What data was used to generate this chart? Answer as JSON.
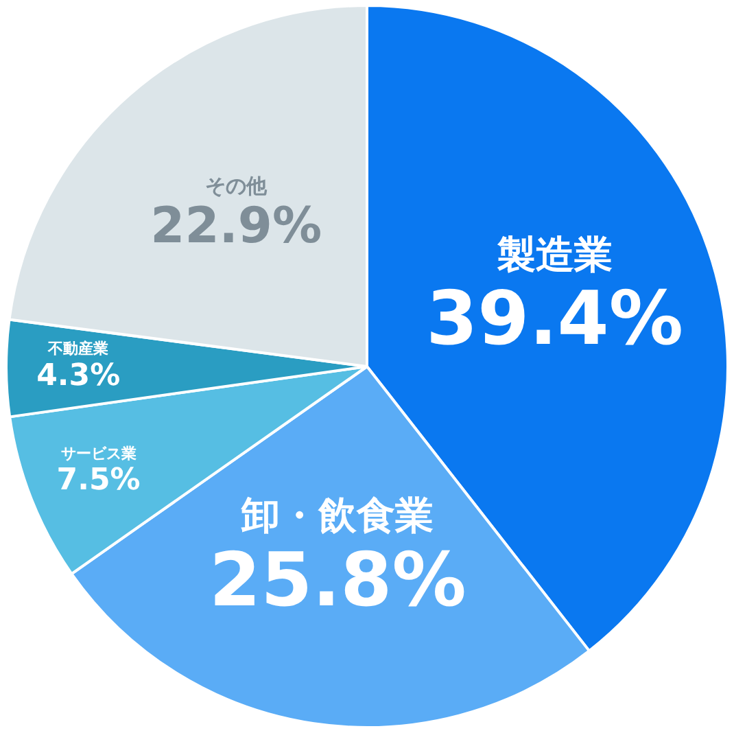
{
  "chart_data": {
    "type": "pie",
    "categories": [
      "製造業",
      "卸・飲食業",
      "サービス業",
      "不動産業",
      "その他"
    ],
    "values": [
      39.4,
      25.8,
      7.5,
      4.3,
      22.9
    ],
    "colors": [
      "#0a78f0",
      "#5aacf6",
      "#56bee3",
      "#2a9dc2",
      "#dce5e9"
    ],
    "value_labels": [
      "39.4%",
      "25.8%",
      "7.5%",
      "4.3%",
      "22.9%"
    ],
    "legend": false
  }
}
